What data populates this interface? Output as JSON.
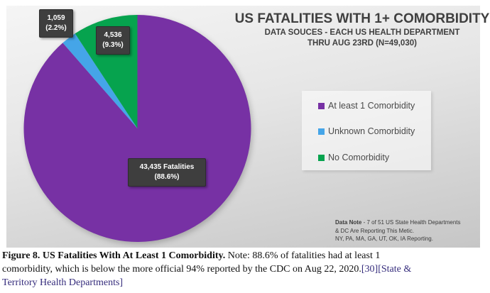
{
  "chart_data": {
    "type": "pie",
    "title": "US FATALITIES WITH 1+ COMORBIDITY",
    "subtitle_line1": "DATA SOUCES - EACH US HEALTH DEPARTMENT",
    "subtitle_line2": "THRU AUG 23RD (N=49,030)",
    "total_n": 49030,
    "start_angle_deg": 0,
    "direction": "clockwise",
    "legend_position": "right",
    "slices": [
      {
        "id": "at-least-1-comorbidity",
        "label": "At least 1 Comorbidity",
        "value": 43435,
        "pct": "88.6%",
        "color": "#7731A4",
        "label_lines": [
          "43,435 Fatalities",
          "(88.6%)"
        ]
      },
      {
        "id": "unknown-comorbidity",
        "label": "Unknown Comorbidity",
        "value": 1059,
        "pct": "2.2%",
        "color": "#45A5E8",
        "label_lines": [
          "1,059",
          "(2.2%)"
        ]
      },
      {
        "id": "no-comorbidity",
        "label": "No Comorbidity",
        "value": 4536,
        "pct": "9.3%",
        "color": "#06A34E",
        "label_lines": [
          "4,536",
          "(9.3%)"
        ]
      }
    ],
    "data_note": {
      "prefix": "Data Note",
      "line1_rest": " - 7 of 51 US State Health Departments",
      "line2": "& DC Are Reporting This Metic.",
      "line3": "NY, PA, MA, GA, UT, OK, IA Reporting."
    }
  },
  "caption": {
    "figure_label": "Figure 8. US Fatalities With At Least 1 Comorbidity.",
    "line1_rest": " Note: 88.6% of fatalities had at least 1",
    "line2_text": "comorbidity, which is below the more official 94% reported by the CDC on Aug 22, 2020.",
    "citation_ref": "[30]",
    "link_part1": "[State &",
    "link_part2": "Territory Health Departments]"
  }
}
